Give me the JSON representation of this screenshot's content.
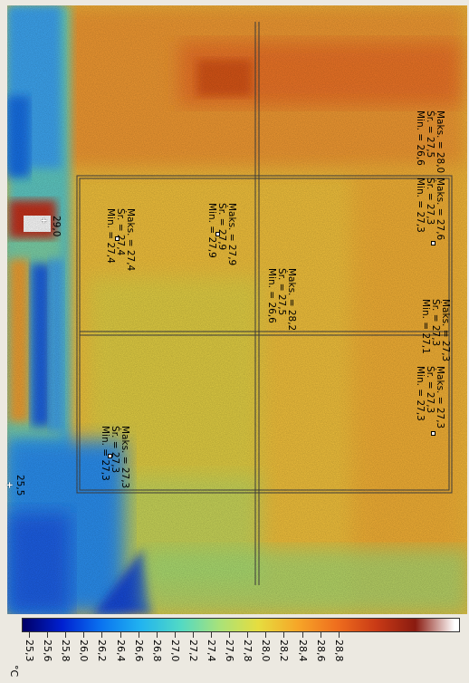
{
  "colors": {
    "scale": [
      "#000066",
      "#0020d0",
      "#0a73f0",
      "#21b3f0",
      "#50d9c6",
      "#a8e27a",
      "#e6dd3f",
      "#f6a628",
      "#ef6e1e",
      "#c93a16",
      "#8a1b10"
    ],
    "accent_frame": "#f4f4f4"
  },
  "scale": {
    "unit": "°C",
    "ticks": [
      "25,3",
      "25,6",
      "25,8",
      "26,0",
      "26,2",
      "26,4",
      "26,6",
      "26,8",
      "27,0",
      "27,2",
      "27,4",
      "27,6",
      "27,8",
      "28,0",
      "28,2",
      "28,4",
      "28,6",
      "28,8"
    ]
  },
  "spot_markers": [
    {
      "value": "29,0"
    },
    {
      "value": "25,5"
    }
  ],
  "measurements": [
    {
      "id": "r1",
      "lines": [
        "Maks. = 28,0",
        "Śr. = 27,5",
        "Min. = 26,6"
      ]
    },
    {
      "id": "r2",
      "lines": [
        "Maks. = 27,6",
        "Śr. = 27,3",
        "Min. = 27,3"
      ]
    },
    {
      "id": "r3",
      "lines": [
        "Maks. = 27,4",
        "Śr. = 27,4",
        "Min. = 27,4"
      ]
    },
    {
      "id": "r4",
      "lines": [
        "Maks. = 27,9",
        "Śr. = 27,9",
        "Min. = 27,9"
      ]
    },
    {
      "id": "r5",
      "lines": [
        "Maks. = 28,2",
        "Śr. = 27,5",
        "Min. = 26,6"
      ]
    },
    {
      "id": "r6",
      "lines": [
        "Maks. = 27,3",
        "Śr. = 27,3",
        "Min. = 27,1"
      ]
    },
    {
      "id": "r7",
      "lines": [
        "Maks. = 27,3",
        "Śr. = 27,3",
        "Min. = 27,3"
      ]
    },
    {
      "id": "r8",
      "lines": [
        "Maks. = 27,3",
        "Śr. = 27,3",
        "Min. = 27,3"
      ]
    }
  ]
}
